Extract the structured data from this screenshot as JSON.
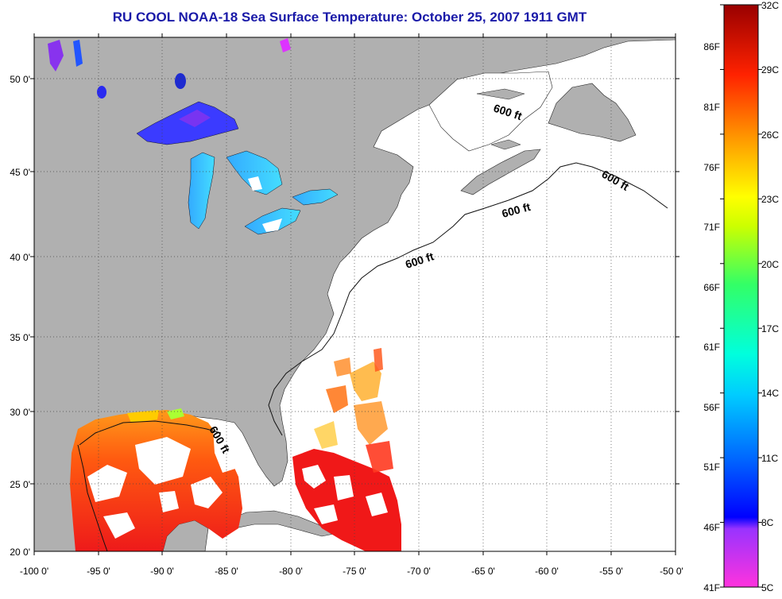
{
  "title": "RU COOL  NOAA-18  Sea Surface Temperature:  October 25, 2007 1911 GMT",
  "map": {
    "lat_labels": [
      "50 0'",
      "45 0'",
      "40 0'",
      "35 0'",
      "30 0'",
      "25 0'",
      "20 0'"
    ],
    "lon_labels": [
      "-100 0'",
      "-95 0'",
      "-90 0'",
      "-85 0'",
      "-80 0'",
      "-75 0'",
      "-70 0'",
      "-65 0'",
      "-60 0'",
      "-55 0'",
      "-50 0'"
    ],
    "contour_label": "600 ft",
    "land_color": "#b0b0b0",
    "ocean_color": "#ffffff"
  },
  "colorbar": {
    "celsius": [
      "32C",
      "29C",
      "26C",
      "23C",
      "20C",
      "17C",
      "14C",
      "11C",
      "8C",
      "5C"
    ],
    "fahrenheit": [
      "86F",
      "81F",
      "76F",
      "71F",
      "66F",
      "61F",
      "56F",
      "51F",
      "46F",
      "41F"
    ],
    "stops": [
      "#ff33dd",
      "#9933ff",
      "#0000ff",
      "#0099ff",
      "#00ffff",
      "#33ff66",
      "#ffff00",
      "#ff9900",
      "#ff0000",
      "#990000"
    ]
  }
}
